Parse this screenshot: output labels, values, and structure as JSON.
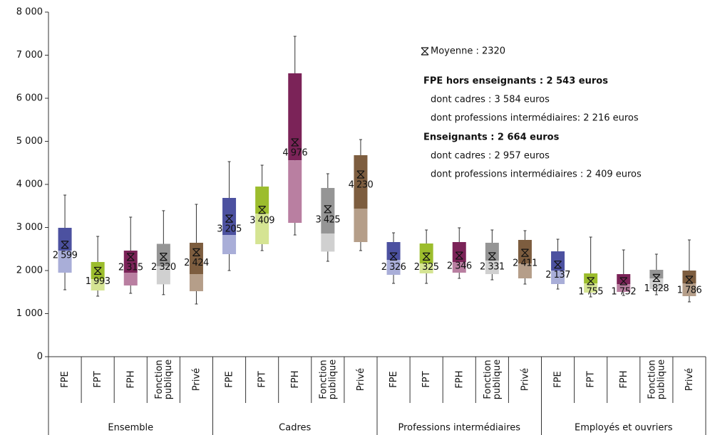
{
  "chart_data": {
    "type": "box",
    "ylim": [
      0,
      8000
    ],
    "yticks": [
      0,
      {
        "value": 1000,
        "label": "1 000"
      },
      {
        "value": 2000,
        "label": "2 000"
      },
      {
        "value": 3000,
        "label": "3 000"
      },
      {
        "value": 4000,
        "label": "4 000"
      },
      {
        "value": 5000,
        "label": "5 000"
      },
      {
        "value": 6000,
        "label": "6 000"
      },
      {
        "value": 7000,
        "label": "7 000"
      },
      {
        "value": 8000,
        "label": "8 000"
      }
    ],
    "colors": [
      {
        "dark": "#4c51a0",
        "light": "#a9aed8"
      },
      {
        "dark": "#9cbd2d",
        "light": "#d5e493"
      },
      {
        "dark": "#7b2358",
        "light": "#b97fa1"
      },
      {
        "dark": "#959595",
        "light": "#d0d0d0"
      },
      {
        "dark": "#7d5d3f",
        "light": "#b59e89"
      }
    ],
    "groups": [
      {
        "name": "Ensemble",
        "boxes": [
          {
            "category": [
              "FPE"
            ],
            "whisker_low": 1554,
            "q1": 1950,
            "median": 2463,
            "q3": 2992,
            "whisker_high": 3752,
            "mean": 2599,
            "mean_label": "2 599"
          },
          {
            "category": [
              "FPT"
            ],
            "whisker_low": 1405,
            "q1": 1537,
            "median": 1800,
            "q3": 2198,
            "whisker_high": 2793,
            "mean": 1993,
            "mean_label": "1 993"
          },
          {
            "category": [
              "FPH"
            ],
            "whisker_low": 1471,
            "q1": 1653,
            "median": 1950,
            "q3": 2463,
            "whisker_high": 3240,
            "mean": 2315,
            "mean_label": "2 315"
          },
          {
            "category": [
              "Fonction",
              "publique"
            ],
            "whisker_low": 1440,
            "q1": 1680,
            "median": 2100,
            "q3": 2620,
            "whisker_high": 3390,
            "mean": 2320,
            "mean_label": "2 320"
          },
          {
            "category": [
              "Privé"
            ],
            "whisker_low": 1223,
            "q1": 1520,
            "median": 1917,
            "q3": 2645,
            "whisker_high": 3537,
            "mean": 2424,
            "mean_label": "2 424"
          }
        ]
      },
      {
        "name": "Cadres",
        "boxes": [
          {
            "category": [
              "FPE"
            ],
            "whisker_low": 2000,
            "q1": 2380,
            "median": 2826,
            "q3": 3686,
            "whisker_high": 4529,
            "mean": 3205,
            "mean_label": "3 205"
          },
          {
            "category": [
              "FPT"
            ],
            "whisker_low": 2463,
            "q1": 2612,
            "median": 3322,
            "q3": 3950,
            "whisker_high": 4446,
            "mean": 3409,
            "mean_label": "3 409"
          },
          {
            "category": [
              "FPH"
            ],
            "whisker_low": 2826,
            "q1": 3107,
            "median": 4560,
            "q3": 6579,
            "whisker_high": 7438,
            "mean": 4976,
            "mean_label": "4 976"
          },
          {
            "category": [
              "Fonction",
              "publique"
            ],
            "whisker_low": 2215,
            "q1": 2440,
            "median": 2860,
            "q3": 3917,
            "whisker_high": 4248,
            "mean": 3425,
            "mean_label": "3 425"
          },
          {
            "category": [
              "Privé"
            ],
            "whisker_low": 2463,
            "q1": 2661,
            "median": 3438,
            "q3": 4678,
            "whisker_high": 5041,
            "mean": 4230,
            "mean_label": "4 230"
          }
        ]
      },
      {
        "name": "Professions intermédiaires",
        "boxes": [
          {
            "category": [
              "FPE"
            ],
            "whisker_low": 1702,
            "q1": 1900,
            "median": 2248,
            "q3": 2661,
            "whisker_high": 2876,
            "mean": 2326,
            "mean_label": "2 326"
          },
          {
            "category": [
              "FPT"
            ],
            "whisker_low": 1702,
            "q1": 1934,
            "median": 2165,
            "q3": 2628,
            "whisker_high": 2942,
            "mean": 2325,
            "mean_label": "2 325"
          },
          {
            "category": [
              "FPH"
            ],
            "whisker_low": 1818,
            "q1": 1950,
            "median": 2198,
            "q3": 2661,
            "whisker_high": 2992,
            "mean": 2346,
            "mean_label": "2 346"
          },
          {
            "category": [
              "Fonction",
              "publique"
            ],
            "whisker_low": 1785,
            "q1": 1917,
            "median": 2231,
            "q3": 2645,
            "whisker_high": 2942,
            "mean": 2331,
            "mean_label": "2 331"
          },
          {
            "category": [
              "Privé"
            ],
            "whisker_low": 1686,
            "q1": 1818,
            "median": 2165,
            "q3": 2711,
            "whisker_high": 2926,
            "mean": 2411,
            "mean_label": "2 411"
          }
        ]
      },
      {
        "name": "Employés et ouvriers",
        "boxes": [
          {
            "category": [
              "FPE"
            ],
            "whisker_low": 1570,
            "q1": 1686,
            "median": 2000,
            "q3": 2446,
            "whisker_high": 2727,
            "mean": 2137,
            "mean_label": "2 137"
          },
          {
            "category": [
              "FPT"
            ],
            "whisker_low": 1388,
            "q1": 1488,
            "median": 1702,
            "q3": 1934,
            "whisker_high": 2777,
            "mean": 1755,
            "mean_label": "1 755"
          },
          {
            "category": [
              "FPH"
            ],
            "whisker_low": 1421,
            "q1": 1504,
            "median": 1686,
            "q3": 1917,
            "whisker_high": 2479,
            "mean": 1752,
            "mean_label": "1 752"
          },
          {
            "category": [
              "Fonction",
              "publique"
            ],
            "whisker_low": 1438,
            "q1": 1570,
            "median": 1818,
            "q3": 2017,
            "whisker_high": 2380,
            "mean": 1828,
            "mean_label": "1 828"
          },
          {
            "category": [
              "Privé"
            ],
            "whisker_low": 1273,
            "q1": 1405,
            "median": 1702,
            "q3": 2000,
            "whisker_high": 2711,
            "mean": 1786,
            "mean_label": "1 786"
          }
        ]
      }
    ],
    "mean_legend": "Moyenne :  2320",
    "notes": [
      {
        "text": "FPE hors enseignants : 2 543 euros",
        "bold": true
      },
      {
        "text": "dont cadres : 3 584 euros",
        "bold": false
      },
      {
        "text": "dont professions intermédiaires:  2 216 euros",
        "bold": false
      },
      {
        "text": "Enseignants : 2 664 euros",
        "bold": true
      },
      {
        "text": "dont cadres : 2 957 euros",
        "bold": false
      },
      {
        "text": "dont professions intermédiaires :  2 409 euros",
        "bold": false
      }
    ]
  }
}
